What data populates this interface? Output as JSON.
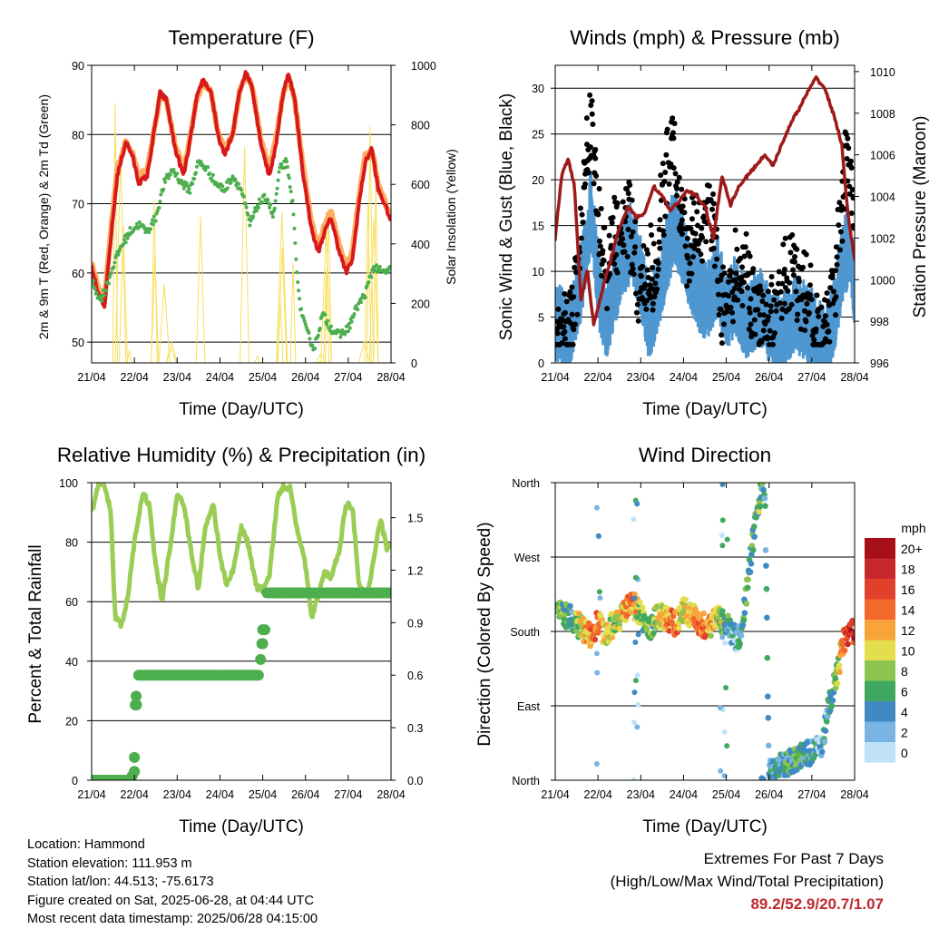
{
  "colors": {
    "t2m": "#d7191c",
    "t9m": "#fdae61",
    "td": "#4cae4c",
    "solar": "#f6e05c",
    "sonic": "#4f97d0",
    "gust": "#000000",
    "pressure": "#9e1a1a",
    "rh": "#9bcc55",
    "precip": "#4cae4c"
  },
  "x_ticks": [
    "21/04",
    "22/04",
    "23/04",
    "24/04",
    "25/04",
    "26/04",
    "27/04",
    "28/04"
  ],
  "panels": {
    "temperature": {
      "title": "Temperature (F)",
      "xlabel": "Time (Day/UTC)",
      "ylabel_left": "2m & 9m T (Red, Orange) & 2m Td (Green)",
      "ylabel_right": "Solar Insolation (Yellow)",
      "yticks_left": [
        "50",
        "60",
        "70",
        "80",
        "90"
      ],
      "yticks_right": [
        "0",
        "200",
        "400",
        "600",
        "800",
        "1000"
      ]
    },
    "winds": {
      "title": "Winds (mph) & Pressure (mb)",
      "xlabel": "Time (Day/UTC)",
      "ylabel_left": "Sonic Wind & Gust (Blue, Black)",
      "ylabel_right": "Station Pressure (Maroon)",
      "yticks_left": [
        "0",
        "5",
        "10",
        "15",
        "20",
        "25",
        "30"
      ],
      "yticks_right": [
        "996",
        "998",
        "1000",
        "1002",
        "1004",
        "1006",
        "1008",
        "1010"
      ]
    },
    "humidity": {
      "title": "Relative Humidity (%) & Precipitation (in)",
      "xlabel": "Time (Day/UTC)",
      "ylabel_left": "Percent & Total Rainfall",
      "yticks_left": [
        "0",
        "20",
        "40",
        "60",
        "80",
        "100"
      ],
      "yticks_right": [
        "0.0",
        "0.3",
        "0.6",
        "0.9",
        "1.2",
        "1.5"
      ]
    },
    "direction": {
      "title": "Wind Direction",
      "xlabel": "Time (Day/UTC)",
      "ylabel_left": "Direction (Colored By Speed)",
      "yticks_left": [
        "North",
        "East",
        "South",
        "West",
        "North"
      ],
      "legend_title": "mph",
      "legend_labels": [
        "20+",
        "18",
        "16",
        "14",
        "12",
        "10",
        "8",
        "6",
        "4",
        "2",
        "0"
      ],
      "legend_colors": [
        "#a50f15",
        "#c8282b",
        "#e2402b",
        "#f2692b",
        "#f9a43a",
        "#e4de4e",
        "#8cc44d",
        "#41a85f",
        "#3f8ac4",
        "#7ab4e2",
        "#bfe3f7"
      ]
    }
  },
  "chart_data": [
    {
      "type": "line",
      "title": "Temperature (F)",
      "xlabel": "Time (Day/UTC)",
      "ylabel": "2m & 9m T (Red, Orange) & 2m Td (Green)",
      "y2label": "Solar Insolation (Yellow)",
      "xlim": [
        0,
        7
      ],
      "ylim": [
        47,
        90
      ],
      "y2lim": [
        0,
        1000
      ],
      "series": [
        {
          "name": "2m T",
          "x": [
            0,
            0.15,
            0.3,
            0.45,
            0.6,
            0.8,
            0.95,
            1.1,
            1.3,
            1.45,
            1.6,
            1.75,
            1.95,
            2.15,
            2.3,
            2.45,
            2.6,
            2.8,
            2.95,
            3.1,
            3.3,
            3.45,
            3.6,
            3.75,
            3.95,
            4.15,
            4.3,
            4.45,
            4.6,
            4.75,
            4.95,
            5.15,
            5.3,
            5.45,
            5.6,
            5.75,
            5.95,
            6.1,
            6.25,
            6.4,
            6.55,
            6.7,
            6.85,
            7.0
          ],
          "y": [
            61,
            57,
            55,
            65,
            74,
            79,
            77,
            73,
            74,
            80,
            86,
            85,
            78,
            74,
            79,
            85,
            88,
            86,
            80,
            77,
            80,
            86,
            89,
            87,
            79,
            74,
            78,
            85,
            89,
            85,
            74,
            66,
            63,
            66,
            68,
            64,
            60,
            62,
            70,
            76,
            78,
            72,
            70,
            67.5
          ]
        },
        {
          "name": "9m T",
          "x": [
            0,
            0.15,
            0.3,
            0.45,
            0.6,
            0.8,
            0.95,
            1.1,
            1.3,
            1.45,
            1.6,
            1.75,
            1.95,
            2.15,
            2.3,
            2.45,
            2.6,
            2.8,
            2.95,
            3.1,
            3.3,
            3.45,
            3.6,
            3.75,
            3.95,
            4.15,
            4.3,
            4.45,
            4.6,
            4.75,
            4.95,
            5.15,
            5.3,
            5.45,
            5.6,
            5.75,
            5.95,
            6.1,
            6.25,
            6.4,
            6.55,
            6.7,
            6.85,
            7.0
          ],
          "y": [
            61.5,
            58,
            56,
            66,
            75,
            79,
            77.5,
            74,
            75,
            80,
            85.5,
            85,
            78.5,
            75,
            79.5,
            85,
            87.5,
            86,
            80.5,
            78,
            80,
            86,
            88.5,
            87,
            79.5,
            75,
            79,
            85,
            88.5,
            85,
            75,
            67,
            64,
            67,
            69,
            65,
            61,
            63,
            71,
            77,
            78,
            73,
            70.5,
            68
          ]
        },
        {
          "name": "2m Td",
          "x": [
            0,
            0.2,
            0.35,
            0.5,
            0.7,
            0.9,
            1.1,
            1.3,
            1.5,
            1.7,
            1.9,
            2.1,
            2.3,
            2.5,
            2.7,
            2.9,
            3.1,
            3.3,
            3.5,
            3.7,
            3.9,
            4.1,
            4.25,
            4.4,
            4.55,
            4.7,
            4.85,
            5.0,
            5.2,
            5.4,
            5.6,
            5.8,
            6.0,
            6.2,
            6.4,
            6.6,
            6.8,
            7.0
          ],
          "y": [
            59,
            56,
            58,
            61,
            64,
            66,
            67,
            66,
            68,
            73,
            75,
            73,
            72,
            76,
            75,
            73,
            72,
            74,
            72,
            67,
            70,
            71,
            68,
            75,
            76,
            70,
            56,
            52,
            49,
            54,
            52,
            51,
            52,
            55,
            57,
            61,
            60,
            60.5
          ]
        },
        {
          "name": "Solar Insolation",
          "axis": "right",
          "x": [
            0.1,
            0.35,
            0.55,
            0.7,
            0.9,
            1.1,
            1.35,
            1.55,
            1.7,
            1.9,
            2.1,
            2.35,
            2.55,
            2.7,
            2.9,
            3.1,
            3.35,
            3.55,
            3.7,
            3.9,
            4.1,
            4.35,
            4.55,
            4.7,
            4.9,
            5.1,
            5.35,
            5.55,
            5.7,
            5.9,
            6.1,
            6.35,
            6.55,
            6.7,
            6.9
          ],
          "y": [
            0,
            0,
            980,
            650,
            0,
            0,
            0,
            920,
            500,
            0,
            0,
            0,
            820,
            600,
            0,
            0,
            0,
            880,
            450,
            0,
            0,
            0,
            1000,
            550,
            0,
            0,
            0,
            720,
            380,
            0,
            0,
            0,
            930,
            400,
            0
          ]
        }
      ]
    },
    {
      "type": "scatter",
      "title": "Winds (mph) & Pressure (mb)",
      "xlabel": "Time (Day/UTC)",
      "ylabel": "Sonic Wind & Gust (Blue, Black)",
      "y2label": "Station Pressure (Maroon)",
      "xlim": [
        0,
        7
      ],
      "ylim": [
        0,
        32.5
      ],
      "y2lim": [
        996,
        1010.3
      ],
      "series": [
        {
          "name": "Sonic Wind",
          "x": [
            0,
            0.3,
            0.6,
            0.85,
            1.0,
            1.2,
            1.5,
            1.8,
            2.0,
            2.2,
            2.5,
            2.8,
            2.9,
            3.2,
            3.5,
            3.8,
            4.0,
            4.2,
            4.5,
            4.8,
            5.0,
            5.3,
            5.6,
            5.9,
            6.1,
            6.3,
            6.5,
            6.7,
            6.9,
            7.0
          ],
          "y": [
            5,
            4,
            9,
            18,
            9,
            5,
            11,
            14,
            10,
            5,
            10,
            16,
            14,
            10,
            7,
            10,
            6,
            8,
            5,
            7,
            5,
            4,
            6,
            5,
            4,
            2,
            5,
            11,
            14,
            8
          ]
        },
        {
          "name": "Gust",
          "x": [
            0,
            0.25,
            0.5,
            0.75,
            0.85,
            0.95,
            1.15,
            1.4,
            1.7,
            2.0,
            2.35,
            2.6,
            2.75,
            2.85,
            3.1,
            3.4,
            3.7,
            3.9,
            4.1,
            4.4,
            4.7,
            4.95,
            5.2,
            5.5,
            5.8,
            6.0,
            6.2,
            6.5,
            6.7,
            6.85,
            7.0
          ],
          "y": [
            7,
            6,
            13,
            28,
            30,
            22,
            14,
            18,
            20,
            12,
            15,
            25,
            30,
            22,
            16,
            19,
            20,
            10,
            13,
            14,
            10,
            8,
            10,
            14,
            12,
            9,
            6,
            10,
            22,
            27,
            18
          ]
        },
        {
          "name": "Station Pressure",
          "axis": "right",
          "x": [
            0,
            0.15,
            0.3,
            0.45,
            0.6,
            0.75,
            0.9,
            1.1,
            1.3,
            1.5,
            1.7,
            1.9,
            2.1,
            2.3,
            2.5,
            2.7,
            2.9,
            3.1,
            3.3,
            3.5,
            3.7,
            3.9,
            4.1,
            4.3,
            4.5,
            4.7,
            4.9,
            5.1,
            5.3,
            5.5,
            5.7,
            5.9,
            6.1,
            6.3,
            6.5,
            6.7,
            6.85,
            7.0
          ],
          "y": [
            1002,
            1005,
            1005.8,
            1004.5,
            999,
            1000.5,
            997.8,
            999.5,
            1001,
            1002.5,
            1003.5,
            1003,
            1003.2,
            1004.5,
            1004,
            1003.3,
            1003.8,
            1004.3,
            1004,
            1003.5,
            1002,
            1005,
            1003.6,
            1004.5,
            1005,
            1005.5,
            1006,
            1005.5,
            1006.5,
            1007.5,
            1008.2,
            1009,
            1009.7,
            1009.2,
            1008,
            1006.5,
            1003,
            1001
          ]
        }
      ]
    },
    {
      "type": "line",
      "title": "Relative Humidity (%) & Precipitation (in)",
      "xlabel": "Time (Day/UTC)",
      "ylabel": "Percent & Total Rainfall",
      "xlim": [
        0,
        7
      ],
      "ylim": [
        0,
        100
      ],
      "y2lim": [
        0,
        1.7
      ],
      "series": [
        {
          "name": "Relative Humidity",
          "x": [
            0,
            0.15,
            0.3,
            0.45,
            0.55,
            0.7,
            0.85,
            1.0,
            1.2,
            1.35,
            1.5,
            1.65,
            1.85,
            2.0,
            2.15,
            2.35,
            2.5,
            2.65,
            2.85,
            3.0,
            3.15,
            3.3,
            3.5,
            3.65,
            3.85,
            4.0,
            4.15,
            4.35,
            4.5,
            4.65,
            4.8,
            5.0,
            5.15,
            5.3,
            5.45,
            5.6,
            5.8,
            5.95,
            6.1,
            6.25,
            6.45,
            6.6,
            6.75,
            6.9,
            7.0
          ],
          "y": [
            90,
            99,
            99,
            90,
            55,
            52,
            62,
            80,
            97,
            92,
            72,
            60,
            80,
            96,
            93,
            75,
            64,
            85,
            93,
            75,
            66,
            70,
            85,
            80,
            65,
            64,
            68,
            95,
            99,
            98,
            85,
            72,
            55,
            62,
            70,
            68,
            78,
            93,
            92,
            65,
            62,
            75,
            88,
            78,
            80
          ]
        },
        {
          "name": "Total Rainfall",
          "axis": "right",
          "x": [
            0,
            0.9,
            1.0,
            1.05,
            1.1,
            1.2,
            1.5,
            2.0,
            2.5,
            3.0,
            3.5,
            3.9,
            4.0,
            4.05,
            4.1,
            4.2,
            4.6,
            5.0,
            5.5,
            6.0,
            6.5,
            7.0
          ],
          "y": [
            0,
            0,
            0.05,
            0.43,
            0.6,
            0.6,
            0.6,
            0.6,
            0.6,
            0.6,
            0.6,
            0.6,
            0.78,
            0.86,
            1.07,
            1.07,
            1.07,
            1.07,
            1.07,
            1.07,
            1.07,
            1.07
          ]
        }
      ]
    },
    {
      "type": "scatter",
      "title": "Wind Direction",
      "xlabel": "Time (Day/UTC)",
      "ylabel": "Direction (Colored By Speed)",
      "xlim": [
        0,
        7
      ],
      "yticks": [
        "North",
        "East",
        "South",
        "West",
        "North"
      ],
      "ylim": [
        0,
        360
      ],
      "colorbar": {
        "label": "mph",
        "ticks": [
          "0",
          "2",
          "4",
          "6",
          "8",
          "10",
          "12",
          "14",
          "16",
          "18",
          "20+"
        ]
      },
      "series": [
        {
          "name": "Direction",
          "x": [
            0,
            0.2,
            0.4,
            0.6,
            0.8,
            1.0,
            1.2,
            1.4,
            1.6,
            1.8,
            2.0,
            2.2,
            2.4,
            2.6,
            2.8,
            3.0,
            3.2,
            3.4,
            3.6,
            3.8,
            4.0,
            4.1,
            4.2,
            4.3,
            4.4,
            4.5,
            4.6,
            4.7,
            4.8,
            4.9,
            5.0,
            5.2,
            5.4,
            5.6,
            5.8,
            6.0,
            6.2,
            6.3,
            6.4,
            6.5,
            6.6,
            6.7,
            6.8,
            6.9,
            7.0
          ],
          "y": [
            205,
            200,
            195,
            185,
            175,
            190,
            175,
            195,
            200,
            215,
            200,
            180,
            200,
            195,
            190,
            205,
            200,
            190,
            185,
            195,
            190,
            180,
            175,
            170,
            200,
            240,
            280,
            320,
            345,
            355,
            10,
            15,
            20,
            25,
            30,
            35,
            40,
            60,
            90,
            110,
            130,
            160,
            175,
            180,
            180
          ],
          "speed": [
            6,
            7,
            4,
            10,
            12,
            14,
            10,
            8,
            12,
            14,
            8,
            6,
            10,
            12,
            14,
            9,
            12,
            14,
            12,
            10,
            6,
            4,
            3,
            4,
            5,
            6,
            6,
            7,
            6,
            5,
            3,
            4,
            5,
            6,
            5,
            4,
            2,
            3,
            4,
            6,
            8,
            12,
            16,
            18,
            17
          ]
        }
      ]
    }
  ],
  "info": {
    "location": "Location: Hammond",
    "elevation": "Station elevation: 111.953 m",
    "latlon": "Station lat/lon: 44.513; -75.6173",
    "created": "Figure created on Sat, 2025-06-28, at 04:44 UTC",
    "timestamp": "Most recent data timestamp: 2025/06/28 04:15:00"
  },
  "extremes": {
    "title": "Extremes For Past 7 Days",
    "subtitle": "(High/Low/Max Wind/Total Precipitation)",
    "values": "89.2/52.9/20.7/1.07"
  }
}
